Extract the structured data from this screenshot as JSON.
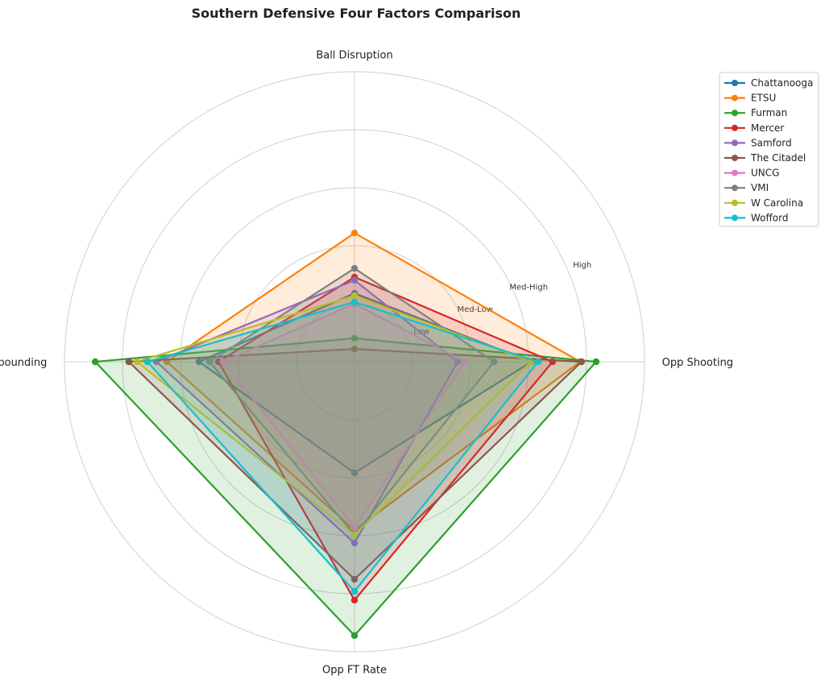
{
  "chart_data": {
    "type": "radar",
    "title": "Southern Defensive Four Factors Comparison",
    "axes": [
      "Ball Disruption",
      "Opp Shooting",
      "Opp FT Rate",
      "Def Rebounding"
    ],
    "rlim": [
      0,
      1
    ],
    "rticks": [
      0.2,
      0.4,
      0.6,
      0.8
    ],
    "rtick_labels": [
      "Low",
      "Med-Low",
      "Med-High",
      "High"
    ],
    "legend_position": "upper-right",
    "series": [
      {
        "name": "Chattanooga",
        "color": "#1f77b4",
        "values": [
          0.236,
          0.61,
          0.383,
          0.536
        ]
      },
      {
        "name": "ETSU",
        "color": "#ff7f0e",
        "values": [
          0.444,
          0.778,
          0.581,
          0.647
        ]
      },
      {
        "name": "Furman",
        "color": "#2ca02c",
        "values": [
          0.081,
          0.833,
          0.944,
          0.894
        ]
      },
      {
        "name": "Mercer",
        "color": "#d62728",
        "values": [
          0.292,
          0.683,
          0.822,
          0.469
        ]
      },
      {
        "name": "Samford",
        "color": "#9467bd",
        "values": [
          0.281,
          0.356,
          0.625,
          0.683
        ]
      },
      {
        "name": "The Citadel",
        "color": "#8c564b",
        "values": [
          0.044,
          0.783,
          0.75,
          0.778
        ]
      },
      {
        "name": "UNCG",
        "color": "#e377c2",
        "values": [
          0.2,
          0.381,
          0.572,
          0.453
        ]
      },
      {
        "name": "VMI",
        "color": "#7f7f7f",
        "values": [
          0.322,
          0.481,
          0.597,
          0.5
        ]
      },
      {
        "name": "W Carolina",
        "color": "#bcbd22",
        "values": [
          0.228,
          0.608,
          0.597,
          0.75
        ]
      },
      {
        "name": "Wofford",
        "color": "#17becf",
        "values": [
          0.206,
          0.633,
          0.792,
          0.714
        ]
      }
    ]
  }
}
